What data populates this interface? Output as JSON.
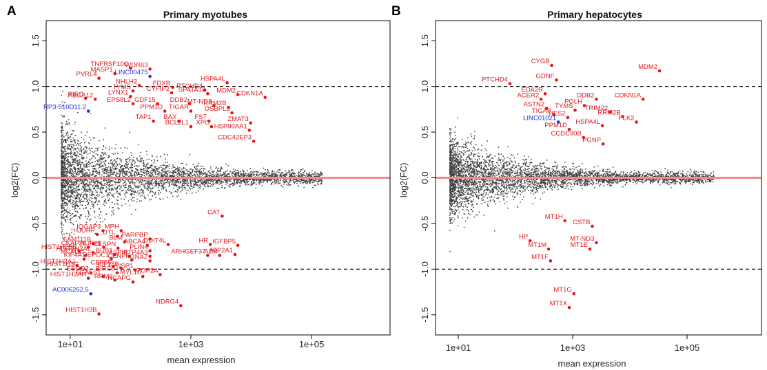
{
  "colors": {
    "background_points": "#3f3f3f",
    "highlight": "#e3161b",
    "highlight_lnc": "#1f2fd6",
    "zero_line": "#f28a8a",
    "threshold_line": "#000000"
  },
  "chart_data": [
    {
      "type": "scatter",
      "panel_letter": "A",
      "title": "Primary myotubes",
      "xlabel": "mean expression",
      "ylabel": "log2(FC)",
      "x_scale": "log10",
      "xlim": [
        4,
        2000000
      ],
      "ylim": [
        -1.72,
        1.72
      ],
      "xticks": [
        10,
        1000,
        100000
      ],
      "xtick_labels": [
        "1e+01",
        "1e+03",
        "1e+05"
      ],
      "yticks": [
        -1.5,
        -1.0,
        -0.5,
        0.0,
        0.5,
        1.0,
        1.5
      ],
      "ytick_labels": [
        "-1.5",
        "-1.0",
        "-0.5",
        "0.0",
        "0.5",
        "1.0",
        "1.5"
      ],
      "reference_lines": [
        0,
        1.0,
        -1.0
      ],
      "grid": false,
      "highlighted": [
        {
          "label": "TNFRSF10C",
          "x": 100,
          "y": 1.2,
          "color": "red"
        },
        {
          "label": "WDR63",
          "x": 210,
          "y": 1.19,
          "color": "red"
        },
        {
          "label": "MASP1",
          "x": 55,
          "y": 1.14,
          "color": "red"
        },
        {
          "label": "PVRL4",
          "x": 30,
          "y": 1.09,
          "color": "red"
        },
        {
          "label": "LINC00475",
          "x": 210,
          "y": 1.11,
          "color": "blue"
        },
        {
          "label": "HSPA4L",
          "x": 4000,
          "y": 1.04,
          "color": "red"
        },
        {
          "label": "NHLH2",
          "x": 140,
          "y": 1.01,
          "color": "red"
        },
        {
          "label": "FDXR",
          "x": 500,
          "y": 0.99,
          "color": "red"
        },
        {
          "label": "PTCHD4",
          "x": 1700,
          "y": 0.96,
          "color": "red"
        },
        {
          "label": "TYMS",
          "x": 110,
          "y": 0.95,
          "color": "red"
        },
        {
          "label": "CYFIP2",
          "x": 480,
          "y": 0.93,
          "color": "red"
        },
        {
          "label": "SPATA18",
          "x": 1900,
          "y": 0.92,
          "color": "red"
        },
        {
          "label": "MDM2",
          "x": 6000,
          "y": 0.91,
          "color": "red"
        },
        {
          "label": "CDKN1A",
          "x": 17000,
          "y": 0.88,
          "color": "red"
        },
        {
          "label": "LYNX1",
          "x": 100,
          "y": 0.89,
          "color": "red"
        },
        {
          "label": "ABCA12",
          "x": 26,
          "y": 0.86,
          "color": "red"
        },
        {
          "label": "PIEO",
          "x": 18,
          "y": 0.87,
          "color": "red"
        },
        {
          "label": "EPS8L2",
          "x": 110,
          "y": 0.81,
          "color": "red"
        },
        {
          "label": "GDF15",
          "x": 280,
          "y": 0.81,
          "color": "red"
        },
        {
          "label": "DDB2",
          "x": 950,
          "y": 0.81,
          "color": "red"
        },
        {
          "label": "MT-ND3",
          "x": 2400,
          "y": 0.79,
          "color": "red"
        },
        {
          "label": "RRM2B",
          "x": 4200,
          "y": 0.77,
          "color": "red"
        },
        {
          "label": "RP3-510D11.2",
          "x": 20,
          "y": 0.73,
          "color": "blue"
        },
        {
          "label": "PPM1D",
          "x": 370,
          "y": 0.73,
          "color": "red"
        },
        {
          "label": "TIGAR",
          "x": 1000,
          "y": 0.73,
          "color": "red"
        },
        {
          "label": "OSBPL3",
          "x": 4800,
          "y": 0.71,
          "color": "red"
        },
        {
          "label": "TAP1",
          "x": 240,
          "y": 0.62,
          "color": "red"
        },
        {
          "label": "BAX",
          "x": 630,
          "y": 0.62,
          "color": "red"
        },
        {
          "label": "FST",
          "x": 2000,
          "y": 0.62,
          "color": "red"
        },
        {
          "label": "ZMAT3",
          "x": 9800,
          "y": 0.6,
          "color": "red"
        },
        {
          "label": "BCL2L1",
          "x": 1000,
          "y": 0.56,
          "color": "red"
        },
        {
          "label": "XPC",
          "x": 2200,
          "y": 0.56,
          "color": "red"
        },
        {
          "label": "HSP90AA1",
          "x": 9300,
          "y": 0.52,
          "color": "red"
        },
        {
          "label": "CDC42EP3",
          "x": 11000,
          "y": 0.4,
          "color": "red"
        },
        {
          "label": "CAT",
          "x": 3300,
          "y": -0.42,
          "color": "red"
        },
        {
          "label": "IQGAP3",
          "x": 35,
          "y": -0.58,
          "color": "red"
        },
        {
          "label": "MPH",
          "x": 70,
          "y": -0.58,
          "color": "red"
        },
        {
          "label": "HJURP",
          "x": 28,
          "y": -0.62,
          "color": "red"
        },
        {
          "label": "DTL",
          "x": 60,
          "y": -0.64,
          "color": "red"
        },
        {
          "label": "PARPBP",
          "x": 210,
          "y": -0.67,
          "color": "red"
        },
        {
          "label": "BLM",
          "x": 80,
          "y": -0.7,
          "color": "red"
        },
        {
          "label": "FAM111B",
          "x": 24,
          "y": -0.72,
          "color": "red"
        },
        {
          "label": "CKAP2L",
          "x": 20,
          "y": -0.76,
          "color": "red"
        },
        {
          "label": "NUF2B",
          "x": 36,
          "y": -0.76,
          "color": "red"
        },
        {
          "label": "CLSPN",
          "x": 62,
          "y": -0.77,
          "color": "red"
        },
        {
          "label": "ABCA4",
          "x": 190,
          "y": -0.74,
          "color": "red"
        },
        {
          "label": "DDIT4L",
          "x": 420,
          "y": -0.73,
          "color": "red"
        },
        {
          "label": "HR",
          "x": 2100,
          "y": -0.73,
          "color": "red"
        },
        {
          "label": "IGFBP5",
          "x": 6000,
          "y": -0.74,
          "color": "red"
        },
        {
          "label": "HIST1H2BB",
          "x": 14,
          "y": -0.8,
          "color": "red"
        },
        {
          "label": "HIST1H2AL",
          "x": 24,
          "y": -0.82,
          "color": "red"
        },
        {
          "label": "PLIN4",
          "x": 210,
          "y": -0.8,
          "color": "red"
        },
        {
          "label": "MCM10",
          "x": 18,
          "y": -0.85,
          "color": "red"
        },
        {
          "label": "BUB1",
          "x": 55,
          "y": -0.84,
          "color": "red"
        },
        {
          "label": "ASPM",
          "x": 95,
          "y": -0.86,
          "color": "red"
        },
        {
          "label": "PTP4A3",
          "x": 210,
          "y": -0.86,
          "color": "red"
        },
        {
          "label": "ARHGEF37",
          "x": 1900,
          "y": -0.85,
          "color": "red"
        },
        {
          "label": "A2M",
          "x": 3000,
          "y": -0.85,
          "color": "red"
        },
        {
          "label": "ATP2A1",
          "x": 5400,
          "y": -0.84,
          "color": "red"
        },
        {
          "label": "KIF4A",
          "x": 17,
          "y": -0.89,
          "color": "red"
        },
        {
          "label": "DEPDC1",
          "x": 48,
          "y": -0.89,
          "color": "red"
        },
        {
          "label": "CENPF",
          "x": 105,
          "y": -0.9,
          "color": "red"
        },
        {
          "label": "GNAZ",
          "x": 210,
          "y": -0.91,
          "color": "red"
        },
        {
          "label": "HIST1H2AJ",
          "x": 13,
          "y": -0.96,
          "color": "red"
        },
        {
          "label": "HIST1H3C",
          "x": 15,
          "y": -0.99,
          "color": "red"
        },
        {
          "label": "CEP55",
          "x": 52,
          "y": -0.97,
          "color": "red"
        },
        {
          "label": "KIF18B",
          "x": 70,
          "y": -0.99,
          "color": "red"
        },
        {
          "label": "USP1",
          "x": 120,
          "y": -1.01,
          "color": "red"
        },
        {
          "label": "ESCO2",
          "x": 22,
          "y": -1.04,
          "color": "red"
        },
        {
          "label": "BIRC5",
          "x": 60,
          "y": -1.04,
          "color": "red"
        },
        {
          "label": "TOP2A",
          "x": 310,
          "y": -1.06,
          "color": "red"
        },
        {
          "label": "LGALS1",
          "x": 35,
          "y": -1.08,
          "color": "red"
        },
        {
          "label": "MYL10",
          "x": 160,
          "y": -1.08,
          "color": "red"
        },
        {
          "label": "HIST1H2AH",
          "x": 20,
          "y": -1.1,
          "color": "red"
        },
        {
          "label": "RRM2",
          "x": 55,
          "y": -1.12,
          "color": "red"
        },
        {
          "label": "NCAPG",
          "x": 110,
          "y": -1.14,
          "color": "red"
        },
        {
          "label": "AC006262.5",
          "x": 22,
          "y": -1.27,
          "color": "blue"
        },
        {
          "label": "NDRG4",
          "x": 680,
          "y": -1.4,
          "color": "red"
        },
        {
          "label": "HIST1H3B",
          "x": 30,
          "y": -1.49,
          "color": "red"
        }
      ]
    },
    {
      "type": "scatter",
      "panel_letter": "B",
      "title": "Primary hepatocytes",
      "xlabel": "mean expression",
      "ylabel": "log2(FC)",
      "x_scale": "log10",
      "xlim": [
        4,
        2000000
      ],
      "ylim": [
        -1.72,
        1.72
      ],
      "xticks": [
        10,
        1000,
        100000
      ],
      "xtick_labels": [
        "1e+01",
        "1e+03",
        "1e+05"
      ],
      "yticks": [
        -1.5,
        -1.0,
        -0.5,
        0.0,
        0.5,
        1.0,
        1.5
      ],
      "ytick_labels": [
        "-1.5",
        "-1.0",
        "-0.5",
        "0.0",
        "0.5",
        "1.0",
        "1.5"
      ],
      "reference_lines": [
        0,
        1.0,
        -1.0
      ],
      "grid": false,
      "highlighted": [
        {
          "label": "CYGB",
          "x": 430,
          "y": 1.23,
          "color": "red"
        },
        {
          "label": "MDM2",
          "x": 33000,
          "y": 1.17,
          "color": "red"
        },
        {
          "label": "GDNF",
          "x": 520,
          "y": 1.07,
          "color": "red"
        },
        {
          "label": "PTCHD4",
          "x": 80,
          "y": 1.03,
          "color": "red"
        },
        {
          "label": "ACER2",
          "x": 280,
          "y": 0.86,
          "color": "red"
        },
        {
          "label": "EDA2R",
          "x": 330,
          "y": 0.92,
          "color": "red"
        },
        {
          "label": "DDB2",
          "x": 2600,
          "y": 0.86,
          "color": "red"
        },
        {
          "label": "CDKN1A",
          "x": 17000,
          "y": 0.86,
          "color": "red"
        },
        {
          "label": "POLH",
          "x": 1600,
          "y": 0.79,
          "color": "red"
        },
        {
          "label": "ASTN2",
          "x": 350,
          "y": 0.76,
          "color": "red"
        },
        {
          "label": "TYMS",
          "x": 1100,
          "y": 0.74,
          "color": "red"
        },
        {
          "label": "TRIM22",
          "x": 4500,
          "y": 0.72,
          "color": "red"
        },
        {
          "label": "RRM2B",
          "x": 7500,
          "y": 0.67,
          "color": "red"
        },
        {
          "label": "TIGAR",
          "x": 470,
          "y": 0.69,
          "color": "red"
        },
        {
          "label": "HES2",
          "x": 820,
          "y": 0.66,
          "color": "red"
        },
        {
          "label": "PLK2",
          "x": 13000,
          "y": 0.61,
          "color": "red"
        },
        {
          "label": "LINC01021",
          "x": 560,
          "y": 0.61,
          "color": "blue"
        },
        {
          "label": "HSPA4L",
          "x": 3300,
          "y": 0.57,
          "color": "red"
        },
        {
          "label": "PPM1D",
          "x": 870,
          "y": 0.53,
          "color": "red"
        },
        {
          "label": "CCDC90B",
          "x": 1550,
          "y": 0.44,
          "color": "red"
        },
        {
          "label": "PGNP",
          "x": 3400,
          "y": 0.37,
          "color": "red"
        },
        {
          "label": "MT1H",
          "x": 730,
          "y": -0.47,
          "color": "red"
        },
        {
          "label": "CSTB",
          "x": 2200,
          "y": -0.53,
          "color": "red"
        },
        {
          "label": "MT-ND3",
          "x": 2600,
          "y": -0.71,
          "color": "red"
        },
        {
          "label": "HP",
          "x": 180,
          "y": -0.69,
          "color": "red"
        },
        {
          "label": "MT1E",
          "x": 2000,
          "y": -0.78,
          "color": "red"
        },
        {
          "label": "MT1M",
          "x": 380,
          "y": -0.78,
          "color": "red"
        },
        {
          "label": "MT1F",
          "x": 410,
          "y": -0.91,
          "color": "red"
        },
        {
          "label": "MT1G",
          "x": 1050,
          "y": -1.27,
          "color": "red"
        },
        {
          "label": "MT1X",
          "x": 870,
          "y": -1.42,
          "color": "red"
        }
      ]
    }
  ]
}
